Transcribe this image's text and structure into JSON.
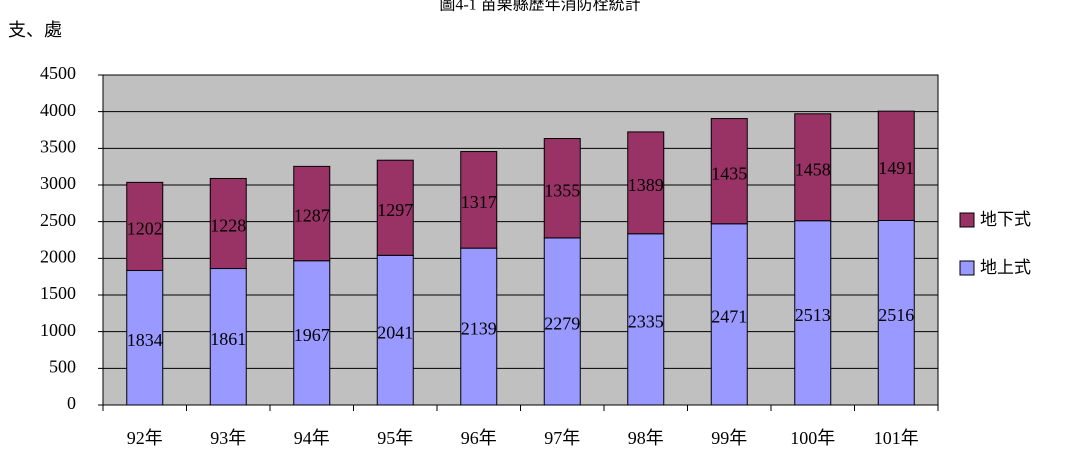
{
  "chart_data": {
    "type": "stacked_bar",
    "title": "圖4-1 苗栗縣歷年消防栓統計",
    "y_label": "支、處",
    "categories": [
      "92年",
      "93年",
      "94年",
      "95年",
      "96年",
      "97年",
      "98年",
      "99年",
      "100年",
      "101年"
    ],
    "series": [
      {
        "name": "地上式",
        "color": "#9999ff",
        "values": [
          1834,
          1861,
          1967,
          2041,
          2139,
          2279,
          2335,
          2471,
          2513,
          2516
        ]
      },
      {
        "name": "地下式",
        "color": "#993366",
        "values": [
          1202,
          1228,
          1287,
          1297,
          1317,
          1355,
          1389,
          1435,
          1458,
          1491
        ]
      }
    ],
    "ylim": [
      0,
      4500
    ],
    "yticks": [
      0,
      500,
      1000,
      1500,
      2000,
      2500,
      3000,
      3500,
      4000,
      4500
    ],
    "grid": true,
    "legend": "right",
    "background": "#c0c0c0"
  }
}
